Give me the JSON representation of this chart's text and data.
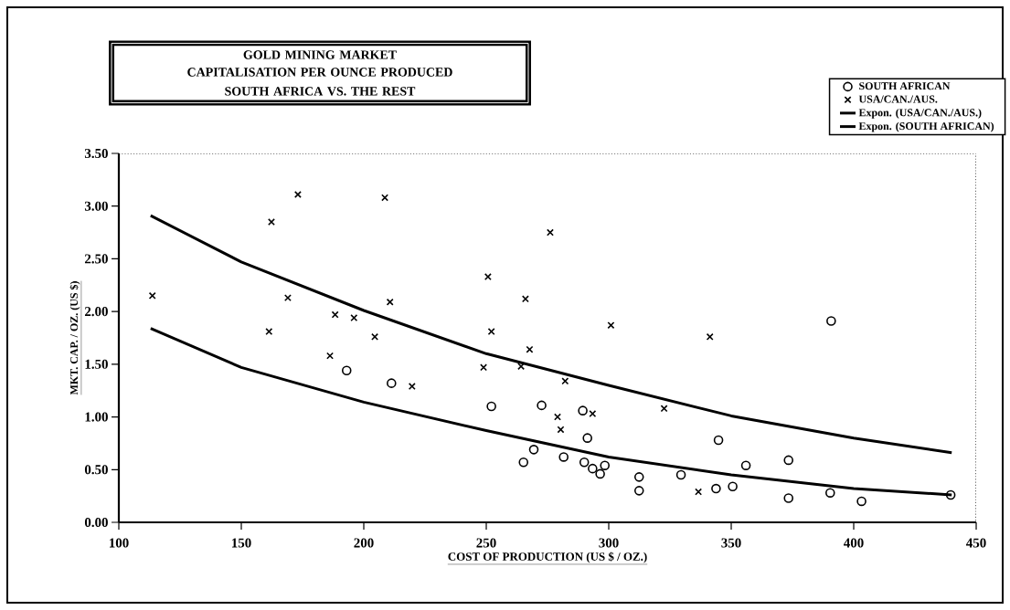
{
  "chart_data": {
    "type": "scatter",
    "title": "GOLD MINING MARKET CAPITALISATION PER OUNCE PRODUCED",
    "subtitle": "SOUTH AFRICA VS. THE REST",
    "xlabel": "COST OF PRODUCTION (US $ / OZ.)",
    "ylabel": "MKT. CAP. / OZ. (US $)",
    "xlim": [
      100,
      450
    ],
    "ylim": [
      0,
      3.5
    ],
    "xticks": [
      100,
      150,
      200,
      250,
      300,
      350,
      400,
      450
    ],
    "yticks": [
      {
        "value": 0,
        "label": "0.00"
      },
      {
        "value": 0.5,
        "label": "0.50"
      },
      {
        "value": 1,
        "label": "1.00"
      },
      {
        "value": 1.5,
        "label": "1.50"
      },
      {
        "value": 2,
        "label": "2.00"
      },
      {
        "value": 2.5,
        "label": "2.50"
      },
      {
        "value": 3,
        "label": "3.00"
      },
      {
        "value": 3.5,
        "label": "3.50"
      }
    ],
    "grid": false,
    "legend": "top right",
    "series": [
      {
        "name": "SOUTH AFRICAN",
        "marker": "circle",
        "color": "#000000",
        "x": [
          193,
          211.3,
          252.1,
          272.6,
          289.4,
          291.3,
          344.8,
          390.8,
          269.4,
          265.2,
          281.6,
          290,
          293.4,
          298.4,
          296.5,
          312.4,
          312.4,
          329.5,
          343.8,
          350.6,
          356,
          373.4,
          373.4,
          390.4,
          403.2,
          439.6
        ],
        "values": [
          1.44,
          1.32,
          1.1,
          1.11,
          1.06,
          0.8,
          0.78,
          1.91,
          0.69,
          0.57,
          0.62,
          0.57,
          0.51,
          0.54,
          0.46,
          0.43,
          0.3,
          0.45,
          0.32,
          0.34,
          0.54,
          0.59,
          0.23,
          0.28,
          0.2,
          0.26
        ]
      },
      {
        "name": "USA/CAN./AUS.",
        "marker": "cross",
        "color": "#000000",
        "x": [
          113.7,
          162.3,
          173.1,
          208.6,
          276.1,
          169,
          161.3,
          188.3,
          196,
          210.7,
          204.5,
          186.2,
          219.7,
          250.7,
          252.1,
          248.9,
          266,
          300.9,
          341.3,
          267.7,
          264.2,
          282.2,
          322.6,
          279.1,
          280.4,
          293.4,
          336.6
        ],
        "values": [
          2.15,
          2.85,
          3.11,
          3.08,
          2.75,
          2.13,
          1.81,
          1.97,
          1.94,
          2.09,
          1.76,
          1.58,
          1.29,
          2.33,
          1.81,
          1.47,
          2.12,
          1.87,
          1.76,
          1.64,
          1.48,
          1.34,
          1.08,
          1.0,
          0.88,
          1.03,
          0.29
        ]
      },
      {
        "name": "Expon. (USA/CAN./AUS.)",
        "type": "line",
        "marker": "none",
        "line_style": "solid",
        "color": "#000000",
        "x": [
          113,
          150,
          200,
          250,
          300,
          350,
          400,
          440
        ],
        "values": [
          2.91,
          2.47,
          2.01,
          1.6,
          1.3,
          1.01,
          0.8,
          0.66
        ]
      },
      {
        "name": "Expon. (SOUTH AFRICAN)",
        "type": "line",
        "marker": "none",
        "line_style": "solid",
        "color": "#000000",
        "x": [
          113,
          150,
          200,
          250,
          300,
          350,
          400,
          440
        ],
        "values": [
          1.84,
          1.47,
          1.14,
          0.87,
          0.62,
          0.45,
          0.32,
          0.26
        ]
      }
    ]
  }
}
